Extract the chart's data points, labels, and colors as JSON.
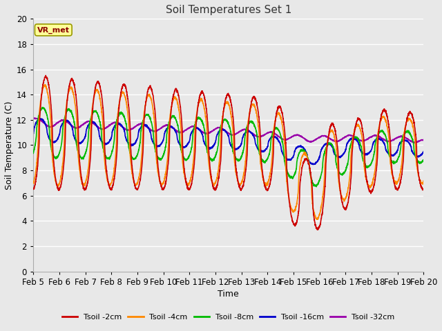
{
  "title": "Soil Temperatures Set 1",
  "xlabel": "Time",
  "ylabel": "Soil Temperature (C)",
  "ylim": [
    0,
    20
  ],
  "xlim": [
    0,
    15
  ],
  "plot_bg": "#e8e8e8",
  "fig_bg": "#e8e8e8",
  "grid_color": "#ffffff",
  "annotation_text": "VR_met",
  "annotation_bg": "#ffff99",
  "annotation_border": "#999900",
  "xtick_labels": [
    "Feb 5",
    "Feb 6",
    "Feb 7",
    "Feb 8",
    "Feb 9",
    "Feb 10",
    "Feb 11",
    "Feb 12",
    "Feb 13",
    "Feb 14",
    "Feb 15",
    "Feb 16",
    "Feb 17",
    "Feb 18",
    "Feb 19",
    "Feb 20"
  ],
  "legend_labels": [
    "Tsoil -2cm",
    "Tsoil -4cm",
    "Tsoil -8cm",
    "Tsoil -16cm",
    "Tsoil -32cm"
  ],
  "legend_colors": [
    "#cc0000",
    "#ff8800",
    "#00bb00",
    "#0000cc",
    "#9900aa"
  ],
  "line_width": 1.2
}
